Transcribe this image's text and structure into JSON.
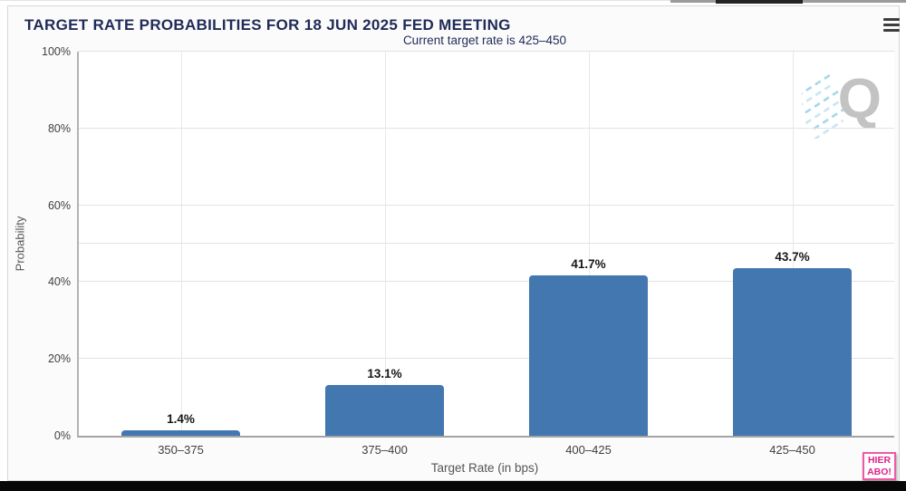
{
  "header": {
    "title": "TARGET RATE PROBABILITIES FOR 18 JUN 2025 FED MEETING"
  },
  "chart_data": {
    "type": "bar",
    "title": "TARGET RATE PROBABILITIES FOR 18 JUN 2025 FED MEETING",
    "subtitle": "Current target rate is 425–450",
    "categories": [
      "350–375",
      "375–400",
      "400–425",
      "425–450"
    ],
    "values": [
      1.4,
      13.1,
      41.7,
      43.7
    ],
    "data_labels": [
      "1.4%",
      "13.1%",
      "41.7%",
      "43.7%"
    ],
    "xlabel": "Target Rate (in bps)",
    "ylabel": "Probability",
    "ylim": [
      0,
      100
    ],
    "ytick_values": [
      0,
      20,
      40,
      60,
      80,
      100
    ],
    "ytick_labels": [
      "0%",
      "20%",
      "40%",
      "60%",
      "80%",
      "100%"
    ],
    "extra_gridlines": [
      50
    ],
    "grid": true,
    "legend": "none",
    "bar_color": "#4277b0"
  },
  "watermark": {
    "letter": "Q"
  },
  "overlay": {
    "badge_line1": "HIER",
    "badge_line2": "ABO!"
  },
  "colors": {
    "bar": "#4277b0",
    "title_navy": "#1f2b58",
    "badge_pink": "#e0218a",
    "gridline": "#e2e2e2"
  }
}
